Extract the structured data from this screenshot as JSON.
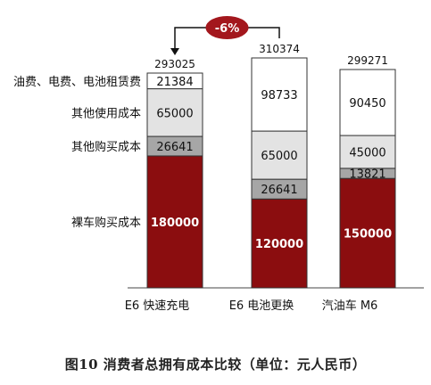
{
  "chart_data": {
    "type": "bar",
    "stacked": true,
    "categories": [
      "E6 快速充电",
      "E6 电池更换",
      "汽油车 M6"
    ],
    "series": [
      {
        "name": "裸车购买成本",
        "color": "#8b0d0f",
        "text_color": "#ffffff",
        "values": [
          180000,
          120000,
          150000
        ]
      },
      {
        "name": "其他购买成本",
        "color": "#a6a6a6",
        "text_color": "#111111",
        "values": [
          26641,
          26641,
          13821
        ]
      },
      {
        "name": "其他使用成本",
        "color": "#e3e3e3",
        "text_color": "#111111",
        "values": [
          65000,
          65000,
          45000
        ]
      },
      {
        "name": "油费、电费、电池租赁费",
        "color": "#ffffff",
        "text_color": "#111111",
        "values": [
          21384,
          98733,
          90450
        ]
      }
    ],
    "totals": [
      "293025",
      "310374",
      "299271"
    ],
    "annotation": {
      "text": "-6%",
      "color": "#a3171d"
    }
  },
  "caption": "图10   消费者总拥有成本比较（单位：元人民币）"
}
